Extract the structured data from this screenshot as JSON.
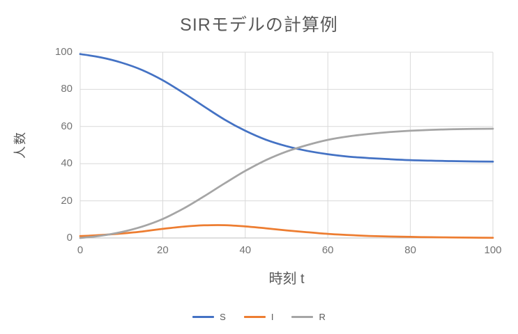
{
  "title": "SIRモデルの計算例",
  "chart_data": {
    "type": "line",
    "title": "SIRモデルの計算例",
    "xlabel": "時刻 t",
    "ylabel": "人数",
    "xlim": [
      0,
      100
    ],
    "ylim": [
      0,
      100
    ],
    "xticks": [
      "0",
      "20",
      "40",
      "60",
      "80",
      "100"
    ],
    "yticks": [
      "0",
      "20",
      "40",
      "60",
      "80",
      "100"
    ],
    "grid": true,
    "legend_position": "bottom",
    "x": [
      0,
      5,
      10,
      15,
      20,
      25,
      30,
      35,
      40,
      45,
      50,
      55,
      60,
      65,
      70,
      75,
      80,
      85,
      90,
      95,
      100
    ],
    "series": [
      {
        "name": "S",
        "color": "#4472C4",
        "values": [
          99,
          97.2,
          94.4,
          90.4,
          84.9,
          78.1,
          70.8,
          63.7,
          57.7,
          52.9,
          49.4,
          46.9,
          45.1,
          43.8,
          43.0,
          42.4,
          41.9,
          41.6,
          41.4,
          41.2,
          41.1
        ]
      },
      {
        "name": "I",
        "color": "#ED7D31",
        "values": [
          1,
          1.6,
          2.4,
          3.5,
          4.9,
          6.1,
          6.8,
          6.9,
          6.2,
          5.2,
          4.1,
          3.1,
          2.2,
          1.6,
          1.1,
          0.8,
          0.6,
          0.4,
          0.3,
          0.2,
          0.1
        ]
      },
      {
        "name": "R",
        "color": "#A5A5A5",
        "values": [
          0,
          1.2,
          3.2,
          6.1,
          10.2,
          15.8,
          22.4,
          29.4,
          36.1,
          41.9,
          46.5,
          50.0,
          52.8,
          54.7,
          56.0,
          57.0,
          57.7,
          58.2,
          58.5,
          58.7,
          58.8
        ]
      }
    ]
  },
  "colors": {
    "background": "#ffffff",
    "title_text": "#595959",
    "tick_text": "#737373",
    "gridline": "#d9d9d9",
    "axis_line": "#bfbfbf"
  }
}
